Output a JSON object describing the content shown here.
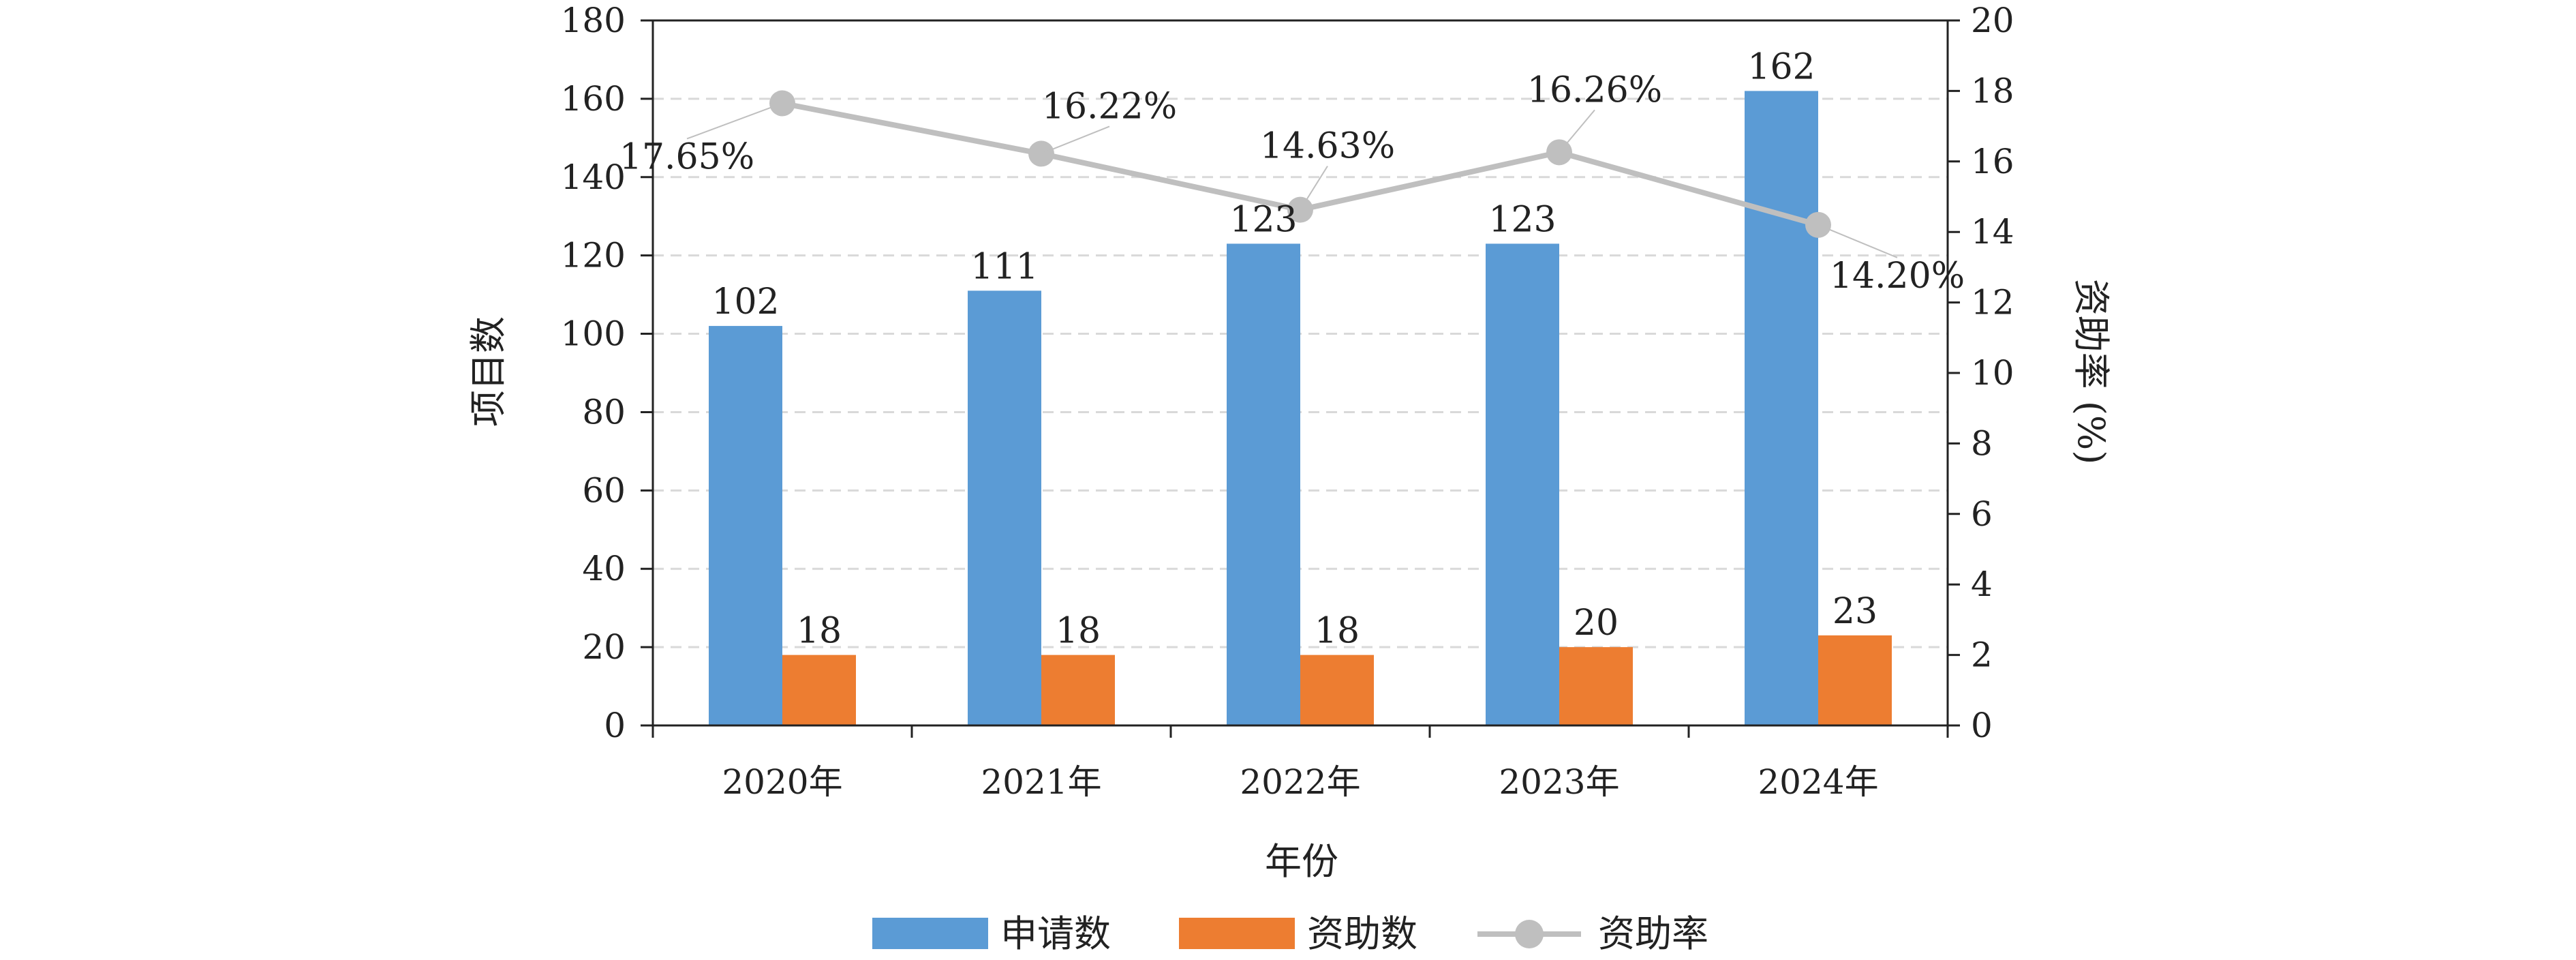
{
  "chart_data": {
    "type": "bar",
    "categories": [
      "2020年",
      "2021年",
      "2022年",
      "2023年",
      "2024年"
    ],
    "series": [
      {
        "name": "申请数",
        "kind": "bar",
        "axis": "left",
        "color": "#5b9bd5",
        "values": [
          102,
          111,
          123,
          123,
          162
        ]
      },
      {
        "name": "资助数",
        "kind": "bar",
        "axis": "left",
        "color": "#ed7d31",
        "values": [
          18,
          18,
          18,
          20,
          23
        ]
      },
      {
        "name": "资助率",
        "kind": "line",
        "axis": "right",
        "color": "#bfbfbf",
        "values": [
          17.65,
          16.22,
          14.63,
          16.26,
          14.2
        ],
        "labels": [
          "17.65%",
          "16.22%",
          "14.63%",
          "16.26%",
          "14.20%"
        ]
      }
    ],
    "xlabel": "年份",
    "ylabel": "项目数",
    "y2label": "资助率 (%)",
    "ylim": [
      0,
      180
    ],
    "y2lim": [
      0,
      20
    ],
    "yticks": [
      "0",
      "20",
      "40",
      "60",
      "80",
      "100",
      "120",
      "140",
      "160",
      "180"
    ],
    "y2ticks": [
      "0",
      "2",
      "4",
      "6",
      "8",
      "10",
      "12",
      "14",
      "16",
      "18",
      "20"
    ],
    "grid": "horizontal dashed",
    "legend_position": "bottom"
  }
}
